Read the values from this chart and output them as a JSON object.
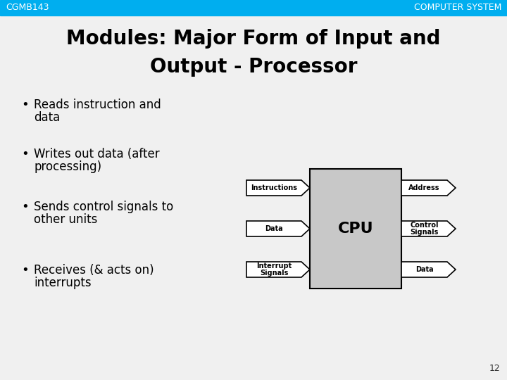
{
  "bg_color": "#f0f0f0",
  "slide_bg": "#f0f0f0",
  "header_color": "#00AEEF",
  "header_text_color": "#ffffff",
  "header_left": "CGMB143",
  "header_right": "COMPUTER SYSTEM",
  "header_font_size": 9,
  "title_line1": "Modules: Major Form of Input and",
  "title_line2": "Output - Processor",
  "title_font_size": 20,
  "title_color": "#000000",
  "bullet_points": [
    "Reads instruction and\ndata",
    "Writes out data (after\nprocessing)",
    "Sends control signals to\nother units",
    "Receives (& acts on)\ninterrupts"
  ],
  "bullet_font_size": 12,
  "bullet_color": "#000000",
  "cpu_box_color": "#C8C8C8",
  "cpu_box_edge": "#000000",
  "cpu_label": "CPU",
  "cpu_font_size": 16,
  "inputs": [
    "Instructions",
    "Data",
    "Interrupt\nSignals"
  ],
  "outputs": [
    "Address",
    "Control\nSignals",
    "Data"
  ],
  "arrow_fill": "#ffffff",
  "arrow_edge": "#000000",
  "arrow_text_size": 7,
  "page_number": "12"
}
